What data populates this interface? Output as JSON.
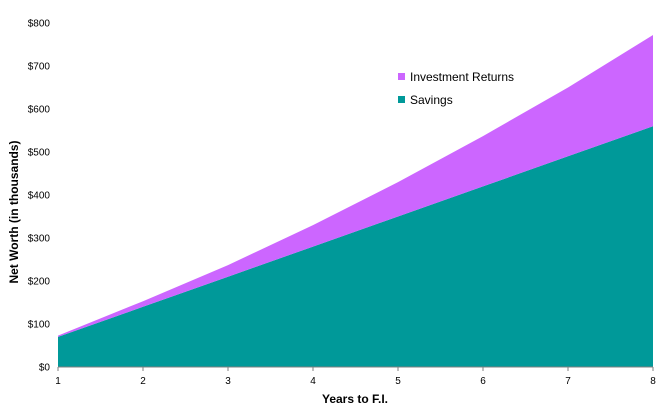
{
  "chart_data": {
    "type": "area",
    "stacked": true,
    "title": "",
    "xlabel": "Years to F.I.",
    "ylabel": "Net Worth (in thousands)",
    "x": [
      1,
      2,
      3,
      4,
      5,
      6,
      7,
      8
    ],
    "xlim": [
      1,
      8
    ],
    "ylim": [
      0,
      800
    ],
    "y_ticks": [
      0,
      100,
      200,
      300,
      400,
      500,
      600,
      700,
      800
    ],
    "y_tick_labels": [
      "$0",
      "$100",
      "$200",
      "$300",
      "$400",
      "$500",
      "$600",
      "$700",
      "$800"
    ],
    "x_tick_labels": [
      "1",
      "2",
      "3",
      "4",
      "5",
      "6",
      "7",
      "8"
    ],
    "grid": false,
    "legend_position": "top-right",
    "series": [
      {
        "name": "Savings",
        "color": "#009999",
        "values": [
          70,
          140,
          210,
          280,
          350,
          420,
          490,
          560
        ]
      },
      {
        "name": "Investment Returns",
        "color": "#CC66FF",
        "values": [
          3,
          13,
          27,
          50,
          80,
          117,
          160,
          212
        ]
      }
    ],
    "legend": [
      {
        "name": "Investment Returns",
        "color": "#CC66FF"
      },
      {
        "name": "Savings",
        "color": "#009999"
      }
    ]
  }
}
